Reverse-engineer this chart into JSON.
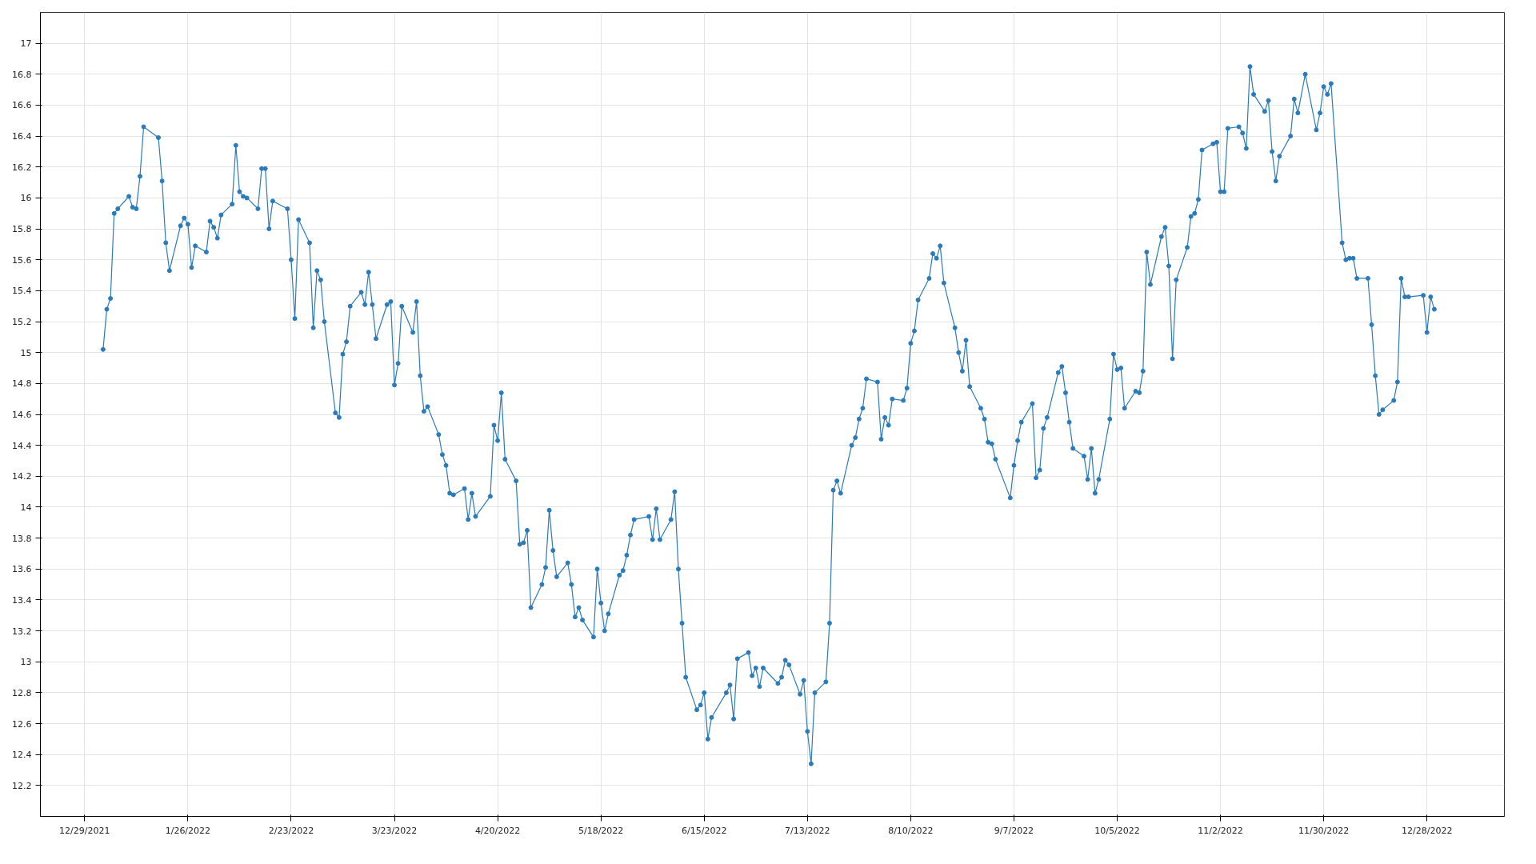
{
  "chart_data": {
    "type": "line",
    "color": "#2b7bba",
    "marker": "circle",
    "line_style": "solid",
    "grid": true,
    "xlim": [
      "2021-12-17",
      "2023-01-18"
    ],
    "ylim": [
      12,
      17.2
    ],
    "xticks": [
      {
        "value": "2021-12-29",
        "label": "12/29/2021"
      },
      {
        "value": "2022-01-26",
        "label": "1/26/2022"
      },
      {
        "value": "2022-02-23",
        "label": "2/23/2022"
      },
      {
        "value": "2022-03-23",
        "label": "3/23/2022"
      },
      {
        "value": "2022-04-20",
        "label": "4/20/2022"
      },
      {
        "value": "2022-05-18",
        "label": "5/18/2022"
      },
      {
        "value": "2022-06-15",
        "label": "6/15/2022"
      },
      {
        "value": "2022-07-13",
        "label": "7/13/2022"
      },
      {
        "value": "2022-08-10",
        "label": "8/10/2022"
      },
      {
        "value": "2022-09-07",
        "label": "9/7/2022"
      },
      {
        "value": "2022-10-05",
        "label": "10/5/2022"
      },
      {
        "value": "2022-11-02",
        "label": "11/2/2022"
      },
      {
        "value": "2022-11-30",
        "label": "11/30/2022"
      },
      {
        "value": "2022-12-28",
        "label": "12/28/2022"
      }
    ],
    "yticks": [
      12.2,
      12.4,
      12.6,
      12.8,
      13,
      13.2,
      13.4,
      13.6,
      13.8,
      14,
      14.2,
      14.4,
      14.6,
      14.8,
      15,
      15.2,
      15.4,
      15.6,
      15.8,
      16,
      16.2,
      16.4,
      16.6,
      16.8,
      17
    ],
    "x": [
      "2022-01-03",
      "2022-01-04",
      "2022-01-05",
      "2022-01-06",
      "2022-01-07",
      "2022-01-10",
      "2022-01-11",
      "2022-01-12",
      "2022-01-13",
      "2022-01-14",
      "2022-01-18",
      "2022-01-19",
      "2022-01-20",
      "2022-01-21",
      "2022-01-24",
      "2022-01-25",
      "2022-01-26",
      "2022-01-27",
      "2022-01-28",
      "2022-01-31",
      "2022-02-01",
      "2022-02-02",
      "2022-02-03",
      "2022-02-04",
      "2022-02-07",
      "2022-02-08",
      "2022-02-09",
      "2022-02-10",
      "2022-02-11",
      "2022-02-14",
      "2022-02-15",
      "2022-02-16",
      "2022-02-17",
      "2022-02-18",
      "2022-02-22",
      "2022-02-23",
      "2022-02-24",
      "2022-02-25",
      "2022-02-28",
      "2022-03-01",
      "2022-03-02",
      "2022-03-03",
      "2022-03-04",
      "2022-03-07",
      "2022-03-08",
      "2022-03-09",
      "2022-03-10",
      "2022-03-11",
      "2022-03-14",
      "2022-03-15",
      "2022-03-16",
      "2022-03-17",
      "2022-03-18",
      "2022-03-21",
      "2022-03-22",
      "2022-03-23",
      "2022-03-24",
      "2022-03-25",
      "2022-03-28",
      "2022-03-29",
      "2022-03-30",
      "2022-03-31",
      "2022-04-01",
      "2022-04-04",
      "2022-04-05",
      "2022-04-06",
      "2022-04-07",
      "2022-04-08",
      "2022-04-11",
      "2022-04-12",
      "2022-04-13",
      "2022-04-14",
      "2022-04-18",
      "2022-04-19",
      "2022-04-20",
      "2022-04-21",
      "2022-04-22",
      "2022-04-25",
      "2022-04-26",
      "2022-04-27",
      "2022-04-28",
      "2022-04-29",
      "2022-05-02",
      "2022-05-03",
      "2022-05-04",
      "2022-05-05",
      "2022-05-06",
      "2022-05-09",
      "2022-05-10",
      "2022-05-11",
      "2022-05-12",
      "2022-05-13",
      "2022-05-16",
      "2022-05-17",
      "2022-05-18",
      "2022-05-19",
      "2022-05-20",
      "2022-05-23",
      "2022-05-24",
      "2022-05-25",
      "2022-05-26",
      "2022-05-27",
      "2022-05-31",
      "2022-06-01",
      "2022-06-02",
      "2022-06-03",
      "2022-06-06",
      "2022-06-07",
      "2022-06-08",
      "2022-06-09",
      "2022-06-10",
      "2022-06-13",
      "2022-06-14",
      "2022-06-15",
      "2022-06-16",
      "2022-06-17",
      "2022-06-21",
      "2022-06-22",
      "2022-06-23",
      "2022-06-24",
      "2022-06-27",
      "2022-06-28",
      "2022-06-29",
      "2022-06-30",
      "2022-07-01",
      "2022-07-05",
      "2022-07-06",
      "2022-07-07",
      "2022-07-08",
      "2022-07-11",
      "2022-07-12",
      "2022-07-13",
      "2022-07-14",
      "2022-07-15",
      "2022-07-18",
      "2022-07-19",
      "2022-07-20",
      "2022-07-21",
      "2022-07-22",
      "2022-07-25",
      "2022-07-26",
      "2022-07-27",
      "2022-07-28",
      "2022-07-29",
      "2022-08-01",
      "2022-08-02",
      "2022-08-03",
      "2022-08-04",
      "2022-08-05",
      "2022-08-08",
      "2022-08-09",
      "2022-08-10",
      "2022-08-11",
      "2022-08-12",
      "2022-08-15",
      "2022-08-16",
      "2022-08-17",
      "2022-08-18",
      "2022-08-19",
      "2022-08-22",
      "2022-08-23",
      "2022-08-24",
      "2022-08-25",
      "2022-08-26",
      "2022-08-29",
      "2022-08-30",
      "2022-08-31",
      "2022-09-01",
      "2022-09-02",
      "2022-09-06",
      "2022-09-07",
      "2022-09-08",
      "2022-09-09",
      "2022-09-12",
      "2022-09-13",
      "2022-09-14",
      "2022-09-15",
      "2022-09-16",
      "2022-09-19",
      "2022-09-20",
      "2022-09-21",
      "2022-09-22",
      "2022-09-23",
      "2022-09-26",
      "2022-09-27",
      "2022-09-28",
      "2022-09-29",
      "2022-09-30",
      "2022-10-03",
      "2022-10-04",
      "2022-10-05",
      "2022-10-06",
      "2022-10-07",
      "2022-10-10",
      "2022-10-11",
      "2022-10-12",
      "2022-10-13",
      "2022-10-14",
      "2022-10-17",
      "2022-10-18",
      "2022-10-19",
      "2022-10-20",
      "2022-10-21",
      "2022-10-24",
      "2022-10-25",
      "2022-10-26",
      "2022-10-27",
      "2022-10-28",
      "2022-10-31",
      "2022-11-01",
      "2022-11-02",
      "2022-11-03",
      "2022-11-04",
      "2022-11-07",
      "2022-11-08",
      "2022-11-09",
      "2022-11-10",
      "2022-11-11",
      "2022-11-14",
      "2022-11-15",
      "2022-11-16",
      "2022-11-17",
      "2022-11-18",
      "2022-11-21",
      "2022-11-22",
      "2022-11-23",
      "2022-11-25",
      "2022-11-28",
      "2022-11-29",
      "2022-11-30",
      "2022-12-01",
      "2022-12-02",
      "2022-12-05",
      "2022-12-06",
      "2022-12-07",
      "2022-12-08",
      "2022-12-09",
      "2022-12-12",
      "2022-12-13",
      "2022-12-14",
      "2022-12-15",
      "2022-12-16",
      "2022-12-19",
      "2022-12-20",
      "2022-12-21",
      "2022-12-22",
      "2022-12-23",
      "2022-12-27",
      "2022-12-28",
      "2022-12-29",
      "2022-12-30"
    ],
    "values": [
      15.02,
      15.28,
      15.35,
      15.9,
      15.93,
      16.01,
      15.94,
      15.93,
      16.14,
      16.46,
      16.39,
      16.11,
      15.71,
      15.53,
      15.82,
      15.87,
      15.83,
      15.55,
      15.69,
      15.65,
      15.85,
      15.81,
      15.74,
      15.89,
      15.96,
      16.34,
      16.04,
      16.01,
      16.0,
      15.93,
      16.19,
      16.19,
      15.8,
      15.98,
      15.93,
      15.6,
      15.22,
      15.86,
      15.71,
      15.16,
      15.53,
      15.47,
      15.2,
      14.61,
      14.58,
      14.99,
      15.07,
      15.3,
      15.39,
      15.31,
      15.52,
      15.31,
      15.09,
      15.31,
      15.33,
      14.79,
      14.93,
      15.3,
      15.13,
      15.33,
      14.85,
      14.62,
      14.65,
      14.47,
      14.34,
      14.27,
      14.09,
      14.08,
      14.12,
      13.92,
      14.09,
      13.94,
      14.07,
      14.53,
      14.43,
      14.74,
      14.31,
      14.17,
      13.76,
      13.77,
      13.85,
      13.35,
      13.5,
      13.61,
      13.98,
      13.72,
      13.55,
      13.64,
      13.5,
      13.29,
      13.35,
      13.27,
      13.16,
      13.6,
      13.38,
      13.2,
      13.31,
      13.56,
      13.59,
      13.69,
      13.82,
      13.92,
      13.94,
      13.79,
      13.99,
      13.79,
      13.92,
      14.1,
      13.6,
      13.25,
      12.9,
      12.69,
      12.72,
      12.8,
      12.5,
      12.64,
      12.8,
      12.85,
      12.63,
      13.02,
      13.06,
      12.91,
      12.96,
      12.84,
      12.96,
      12.86,
      12.9,
      13.01,
      12.98,
      12.79,
      12.88,
      12.55,
      12.34,
      12.8,
      12.87,
      13.25,
      14.11,
      14.17,
      14.09,
      14.4,
      14.45,
      14.57,
      14.64,
      14.83,
      14.81,
      14.44,
      14.58,
      14.53,
      14.7,
      14.69,
      14.77,
      15.06,
      15.14,
      15.34,
      15.48,
      15.64,
      15.61,
      15.69,
      15.45,
      15.16,
      15.0,
      14.88,
      15.08,
      14.78,
      14.64,
      14.57,
      14.42,
      14.41,
      14.31,
      14.06,
      14.27,
      14.43,
      14.55,
      14.67,
      14.19,
      14.24,
      14.51,
      14.58,
      14.87,
      14.91,
      14.74,
      14.55,
      14.38,
      14.33,
      14.18,
      14.38,
      14.09,
      14.18,
      14.57,
      14.99,
      14.89,
      14.9,
      14.64,
      14.75,
      14.74,
      14.88,
      15.65,
      15.44,
      15.75,
      15.81,
      15.56,
      14.96,
      15.47,
      15.68,
      15.88,
      15.9,
      15.99,
      16.31,
      16.35,
      16.36,
      16.04,
      16.04,
      16.45,
      16.46,
      16.42,
      16.32,
      16.85,
      16.67,
      16.56,
      16.63,
      16.3,
      16.11,
      16.27,
      16.4,
      16.64,
      16.55,
      16.8,
      16.44,
      16.55,
      16.72,
      16.67,
      16.74,
      15.71,
      15.6,
      15.61,
      15.61,
      15.48,
      15.48,
      15.18,
      14.85,
      14.6,
      14.63,
      14.69,
      14.81,
      15.48,
      15.36,
      15.36,
      15.37,
      15.13,
      15.36,
      15.28
    ]
  }
}
